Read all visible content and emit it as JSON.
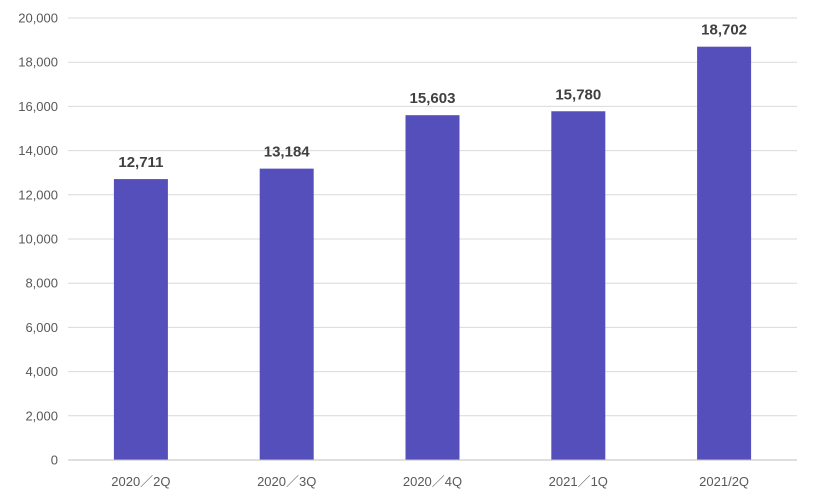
{
  "chart_data": {
    "type": "bar",
    "categories": [
      "2020／2Q",
      "2020／3Q",
      "2020／4Q",
      "2021／1Q",
      "2021/2Q"
    ],
    "values": [
      12711,
      13184,
      15603,
      15780,
      18702
    ],
    "data_labels": [
      "12,711",
      "13,184",
      "15,603",
      "15,780",
      "18,702"
    ],
    "ylim": [
      0,
      20000
    ],
    "yticks": [
      0,
      2000,
      4000,
      6000,
      8000,
      10000,
      12000,
      14000,
      16000,
      18000,
      20000
    ],
    "ytick_labels": [
      "0",
      "2,000",
      "4,000",
      "6,000",
      "8,000",
      "10,000",
      "12,000",
      "14,000",
      "16,000",
      "18,000",
      "20,000"
    ],
    "grid": true,
    "legend": "none",
    "bar_color": "#554fbc"
  }
}
